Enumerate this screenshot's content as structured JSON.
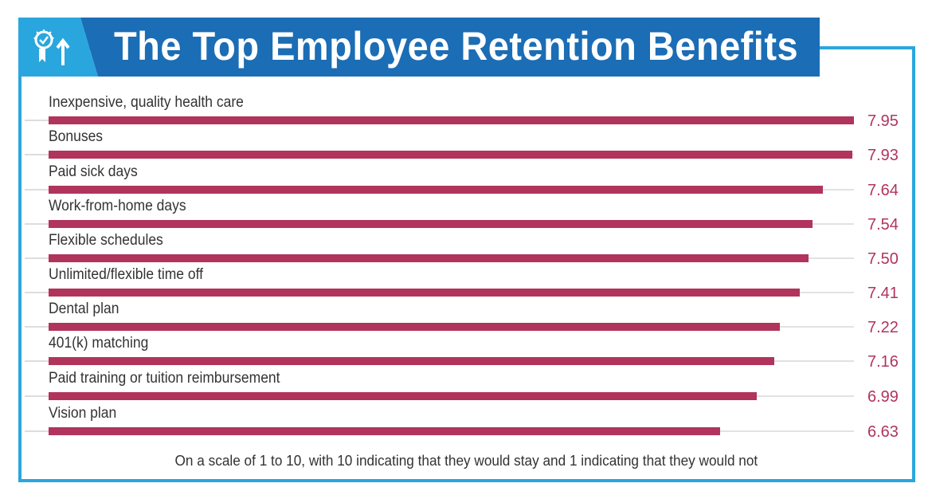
{
  "header": {
    "title": "The Top Employee Retention Benefits",
    "icon": "award-ribbon-up-arrow-icon"
  },
  "colors": {
    "header_dark": "#1b6db5",
    "header_light": "#2aa6de",
    "frame": "#2aa6de",
    "bar": "#b1345c",
    "value_text": "#b1345c",
    "label_text": "#333333",
    "track": "#e2e2e2"
  },
  "footnote": "On a scale of 1 to 10, with 10 indicating that they would stay and 1 indicating that they would not",
  "rows": [
    {
      "label": "Inexpensive, quality health care",
      "value": "7.95"
    },
    {
      "label": "Bonuses",
      "value": "7.93"
    },
    {
      "label": "Paid sick days",
      "value": "7.64"
    },
    {
      "label": "Work-from-home days",
      "value": "7.54"
    },
    {
      "label": "Flexible schedules",
      "value": "7.50"
    },
    {
      "label": "Unlimited/flexible time off",
      "value": "7.41"
    },
    {
      "label": "Dental plan",
      "value": "7.22"
    },
    {
      "label": "401(k) matching",
      "value": "7.16"
    },
    {
      "label": "Paid training or tuition reimbursement",
      "value": "6.99"
    },
    {
      "label": "Vision plan",
      "value": "6.63"
    }
  ],
  "chart_data": {
    "type": "bar",
    "orientation": "horizontal",
    "title": "The Top Employee Retention Benefits",
    "categories": [
      "Inexpensive, quality health care",
      "Bonuses",
      "Paid sick days",
      "Work-from-home days",
      "Flexible schedules",
      "Unlimited/flexible time off",
      "Dental plan",
      "401(k) matching",
      "Paid training or tuition reimbursement",
      "Vision plan"
    ],
    "values": [
      7.95,
      7.93,
      7.64,
      7.54,
      7.5,
      7.41,
      7.22,
      7.16,
      6.99,
      6.63
    ],
    "xlabel": "",
    "ylabel": "",
    "annotation": "On a scale of 1 to 10, with 10 indicating that they would stay and 1 indicating that they would not",
    "grid": false,
    "legend": "none",
    "data_labels": "right of bars"
  }
}
